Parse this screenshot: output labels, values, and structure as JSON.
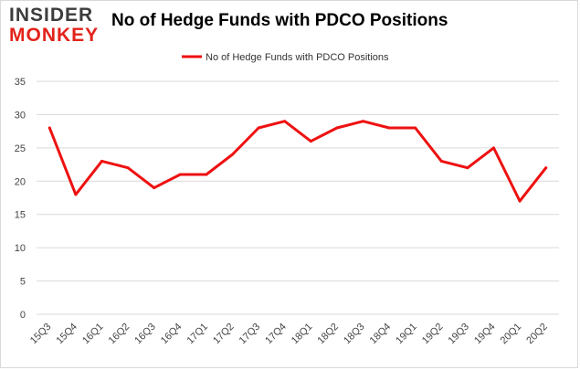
{
  "logo": {
    "line1": "INSIDER",
    "line2": "MONKEY"
  },
  "colors": {
    "series": "#ee1111",
    "grid": "#d9d9d9",
    "logo_dark": "#3c3c3c",
    "logo_red": "#e2231a"
  },
  "chart_data": {
    "type": "line",
    "title": "No of Hedge Funds with PDCO Positions",
    "xlabel": "",
    "ylabel": "",
    "categories": [
      "15Q3",
      "15Q4",
      "16Q1",
      "16Q2",
      "16Q3",
      "16Q4",
      "17Q1",
      "17Q2",
      "17Q3",
      "17Q4",
      "18Q1",
      "18Q2",
      "18Q3",
      "18Q4",
      "19Q1",
      "19Q2",
      "19Q3",
      "19Q4",
      "20Q1",
      "20Q2"
    ],
    "series": [
      {
        "name": "No of Hedge Funds with PDCO Positions",
        "values": [
          28,
          18,
          23,
          22,
          19,
          21,
          21,
          24,
          28,
          29,
          26,
          28,
          29,
          28,
          28,
          23,
          22,
          25,
          17,
          22
        ]
      }
    ],
    "ylim": [
      0,
      35
    ],
    "yticks": [
      0,
      5,
      10,
      15,
      20,
      25,
      30,
      35
    ],
    "grid": true,
    "legend": "top-center"
  }
}
